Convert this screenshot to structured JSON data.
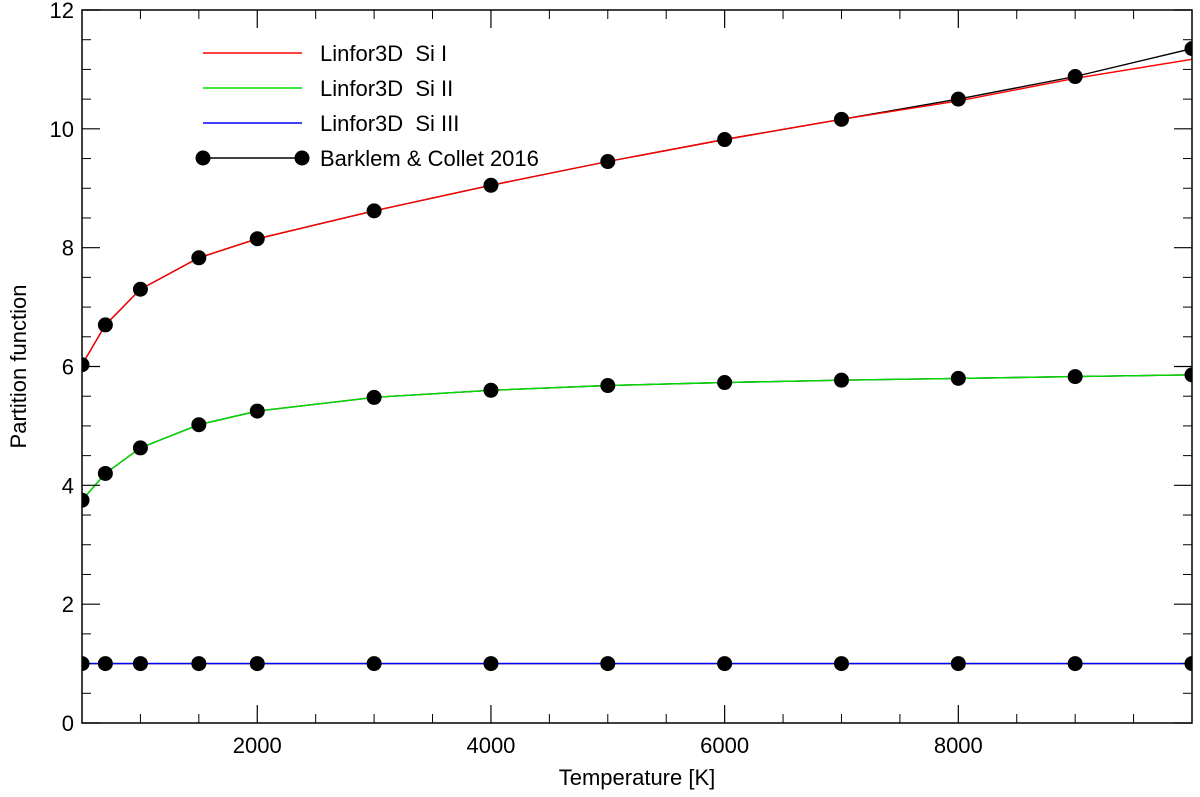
{
  "chart_data": {
    "type": "line",
    "xlabel": "Temperature [K]",
    "ylabel": "Partition function",
    "xlim": [
      500,
      10000
    ],
    "ylim": [
      0,
      12
    ],
    "x_ticks": [
      2000,
      4000,
      6000,
      8000
    ],
    "x_tick_labels": [
      "2000",
      "4000",
      "6000",
      "8000"
    ],
    "y_ticks": [
      0,
      2,
      4,
      6,
      8,
      10,
      12
    ],
    "y_tick_labels": [
      "0",
      "2",
      "4",
      "6",
      "8",
      "10",
      "12"
    ],
    "grid": false,
    "legend_position": "top-left",
    "colors": {
      "si1": "#ff0000",
      "si2": "#00dd00",
      "si3": "#0000ff",
      "barklem": "#000000"
    },
    "legend": [
      {
        "label": "Linfor3D  Si I",
        "color": "#ff0000",
        "marker": false
      },
      {
        "label": "Linfor3D  Si II",
        "color": "#00dd00",
        "marker": false
      },
      {
        "label": "Linfor3D  Si III",
        "color": "#0000ff",
        "marker": false
      },
      {
        "label": "Barklem & Collet 2016",
        "color": "#000000",
        "marker": true
      }
    ],
    "x": [
      500,
      700,
      1000,
      1500,
      2000,
      3000,
      4000,
      5000,
      6000,
      7000,
      8000,
      9000,
      10000
    ],
    "series": [
      {
        "name": "Linfor3D  Si I",
        "line": true,
        "markers": false,
        "values": [
          6.03,
          6.7,
          7.3,
          7.83,
          8.15,
          8.62,
          9.05,
          9.45,
          9.82,
          10.16,
          10.47,
          10.85,
          11.17
        ]
      },
      {
        "name": "Linfor3D  Si II",
        "line": true,
        "markers": false,
        "values": [
          3.75,
          4.2,
          4.63,
          5.02,
          5.25,
          5.48,
          5.6,
          5.68,
          5.73,
          5.77,
          5.8,
          5.83,
          5.86
        ]
      },
      {
        "name": "Linfor3D  Si III",
        "line": true,
        "markers": false,
        "values": [
          1.0,
          1.0,
          1.0,
          1.0,
          1.0,
          1.0,
          1.0,
          1.0,
          1.0,
          1.0,
          1.0,
          1.0,
          1.0
        ]
      },
      {
        "name": "Barklem & Collet 2016 (Si I)",
        "line": true,
        "markers": true,
        "values": [
          6.03,
          6.7,
          7.3,
          7.83,
          8.15,
          8.62,
          9.05,
          9.45,
          9.82,
          10.16,
          10.5,
          10.88,
          11.35
        ]
      },
      {
        "name": "Barklem & Collet 2016 (Si II)",
        "line": true,
        "markers": true,
        "values": [
          3.75,
          4.2,
          4.63,
          5.02,
          5.25,
          5.48,
          5.6,
          5.68,
          5.73,
          5.77,
          5.8,
          5.83,
          5.86
        ]
      },
      {
        "name": "Barklem & Collet 2016 (Si III)",
        "line": true,
        "markers": true,
        "values": [
          1.0,
          1.0,
          1.0,
          1.0,
          1.0,
          1.0,
          1.0,
          1.0,
          1.0,
          1.0,
          1.0,
          1.0,
          1.0
        ]
      }
    ]
  }
}
